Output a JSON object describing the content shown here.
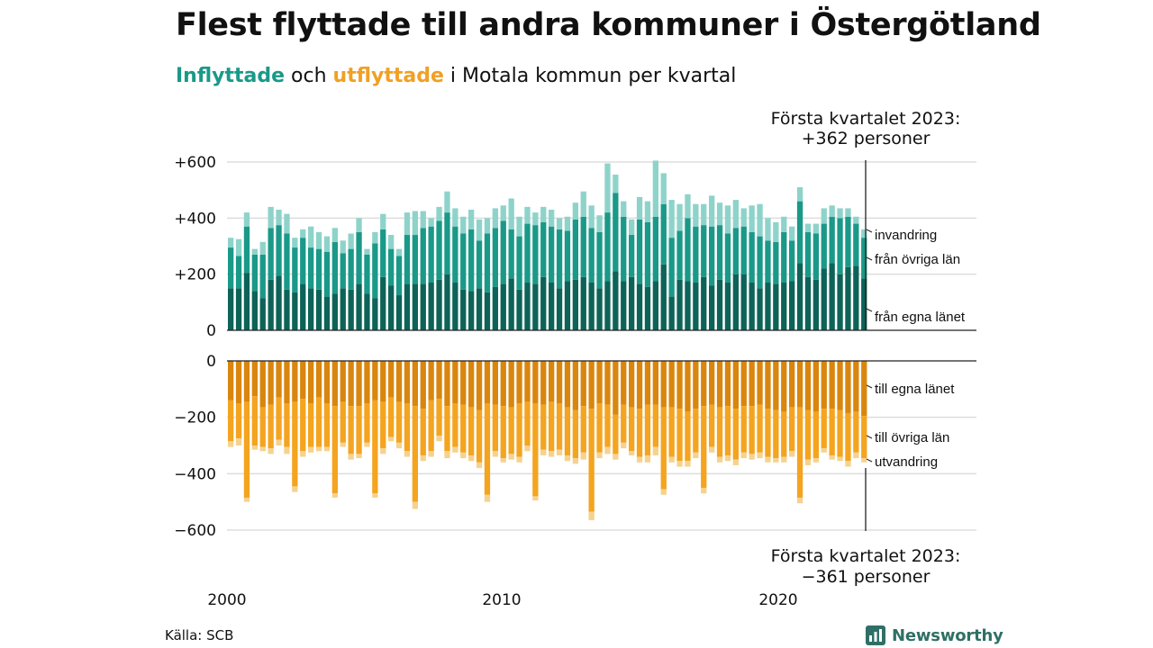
{
  "title": "Flest flyttade till andra kommuner i Östergötland",
  "subtitle": {
    "inflow_word": "Inflyttade",
    "connector": "och",
    "outflow_word": "utflyttade",
    "rest": "i Motala kommun per kvartal"
  },
  "source": "Källa: SCB",
  "brand": "Newsworthy",
  "colors": {
    "in_egna": "#0d6357",
    "in_ovriga": "#1a9988",
    "in_invandring": "#8ed3ca",
    "ut_egna": "#d9860e",
    "ut_ovriga": "#f4a41f",
    "ut_utvandring": "#f6d28f",
    "brand": "#2f6f66"
  },
  "chart_data": {
    "type": "bar",
    "layout": "diverging stacked bars (inflow above, outflow below zero)",
    "x_ticks": [
      "2000",
      "2010",
      "2020"
    ],
    "x_start": "2000 Q1",
    "x_end": "2023 Q1",
    "y_top": {
      "ylim": [
        0,
        600
      ],
      "tick_labels": [
        "+600",
        "+400",
        "+200",
        "0"
      ],
      "tick_values": [
        600,
        400,
        200,
        0
      ]
    },
    "y_bottom": {
      "ylim": [
        -600,
        0
      ],
      "tick_labels": [
        "0",
        "−200",
        "−400",
        "−600"
      ],
      "tick_values": [
        0,
        -200,
        -400,
        -600
      ]
    },
    "grid": true,
    "annotation_top": {
      "line1": "Första kvartalet 2023:",
      "line2": "+362 personer"
    },
    "annotation_bottom": {
      "line1": "Första kvartalet 2023:",
      "line2": "−361 personer"
    },
    "inflow_series_labels": {
      "invandring": "invandring",
      "ovriga": "från övriga län",
      "egna": "från egna länet"
    },
    "outflow_series_labels": {
      "egna": "till egna länet",
      "ovriga": "till övriga län",
      "utvandring": "utvandring"
    },
    "inflow": {
      "egna": [
        150,
        150,
        205,
        140,
        115,
        180,
        195,
        145,
        135,
        165,
        150,
        145,
        120,
        130,
        150,
        145,
        165,
        130,
        115,
        190,
        160,
        125,
        165,
        165,
        165,
        170,
        180,
        200,
        170,
        145,
        140,
        150,
        135,
        155,
        165,
        185,
        145,
        170,
        165,
        190,
        170,
        150,
        175,
        180,
        190,
        170,
        150,
        175,
        210,
        175,
        190,
        165,
        155,
        175,
        235,
        120,
        180,
        175,
        170,
        190,
        160,
        180,
        170,
        200,
        200,
        170,
        150,
        170,
        165,
        170,
        175,
        240,
        190,
        180,
        220,
        240,
        200,
        225,
        230,
        185
      ],
      "ovriga": [
        145,
        115,
        165,
        130,
        155,
        185,
        180,
        200,
        160,
        165,
        145,
        145,
        160,
        185,
        125,
        145,
        185,
        140,
        195,
        170,
        130,
        140,
        175,
        175,
        200,
        200,
        210,
        220,
        200,
        200,
        220,
        170,
        210,
        210,
        225,
        175,
        190,
        210,
        210,
        195,
        200,
        210,
        180,
        215,
        215,
        195,
        200,
        245,
        280,
        230,
        150,
        230,
        230,
        230,
        215,
        210,
        175,
        225,
        200,
        185,
        210,
        195,
        175,
        165,
        170,
        180,
        185,
        150,
        150,
        180,
        145,
        220,
        160,
        165,
        160,
        165,
        200,
        180,
        150,
        145
      ],
      "invandring": [
        35,
        60,
        50,
        20,
        45,
        75,
        55,
        70,
        35,
        30,
        75,
        60,
        55,
        50,
        45,
        55,
        50,
        20,
        40,
        55,
        50,
        25,
        80,
        85,
        60,
        30,
        50,
        75,
        65,
        60,
        70,
        75,
        55,
        70,
        55,
        110,
        70,
        60,
        45,
        55,
        60,
        40,
        50,
        60,
        90,
        80,
        60,
        175,
        65,
        55,
        55,
        80,
        75,
        200,
        110,
        135,
        95,
        85,
        80,
        75,
        110,
        80,
        100,
        100,
        65,
        95,
        115,
        80,
        70,
        55,
        50,
        50,
        30,
        35,
        55,
        40,
        35,
        30,
        25,
        30
      ]
    },
    "outflow": {
      "egna": [
        140,
        150,
        145,
        125,
        165,
        155,
        130,
        150,
        145,
        135,
        150,
        130,
        150,
        160,
        145,
        160,
        160,
        150,
        140,
        145,
        130,
        145,
        150,
        160,
        170,
        140,
        135,
        160,
        150,
        155,
        165,
        175,
        150,
        155,
        160,
        165,
        150,
        145,
        150,
        155,
        145,
        150,
        165,
        175,
        160,
        170,
        150,
        155,
        190,
        155,
        165,
        170,
        155,
        155,
        165,
        165,
        170,
        180,
        170,
        160,
        155,
        165,
        160,
        170,
        160,
        160,
        155,
        170,
        175,
        180,
        165,
        165,
        175,
        180,
        170,
        170,
        175,
        185,
        180,
        195
      ],
      "ovriga": [
        145,
        125,
        340,
        175,
        140,
        155,
        150,
        155,
        300,
        185,
        155,
        175,
        155,
        310,
        145,
        170,
        170,
        140,
        330,
        165,
        140,
        145,
        170,
        340,
        165,
        180,
        130,
        160,
        155,
        170,
        170,
        185,
        325,
        165,
        185,
        165,
        190,
        155,
        330,
        160,
        175,
        165,
        170,
        170,
        165,
        365,
        175,
        150,
        140,
        135,
        155,
        170,
        180,
        150,
        290,
        175,
        185,
        175,
        155,
        290,
        150,
        175,
        175,
        180,
        165,
        170,
        170,
        170,
        170,
        160,
        155,
        320,
        175,
        165,
        140,
        165,
        165,
        170,
        145,
        150
      ],
      "utvandring": [
        20,
        25,
        15,
        15,
        15,
        20,
        20,
        25,
        20,
        20,
        20,
        15,
        15,
        15,
        15,
        20,
        15,
        15,
        15,
        20,
        15,
        20,
        20,
        25,
        20,
        20,
        20,
        25,
        20,
        20,
        20,
        20,
        25,
        20,
        15,
        20,
        20,
        20,
        15,
        20,
        20,
        20,
        20,
        20,
        25,
        30,
        20,
        25,
        20,
        20,
        15,
        20,
        25,
        30,
        20,
        20,
        20,
        20,
        20,
        20,
        20,
        20,
        20,
        20,
        20,
        20,
        20,
        20,
        15,
        20,
        20,
        20,
        20,
        15,
        15,
        15,
        15,
        20,
        20,
        15
      ]
    }
  }
}
